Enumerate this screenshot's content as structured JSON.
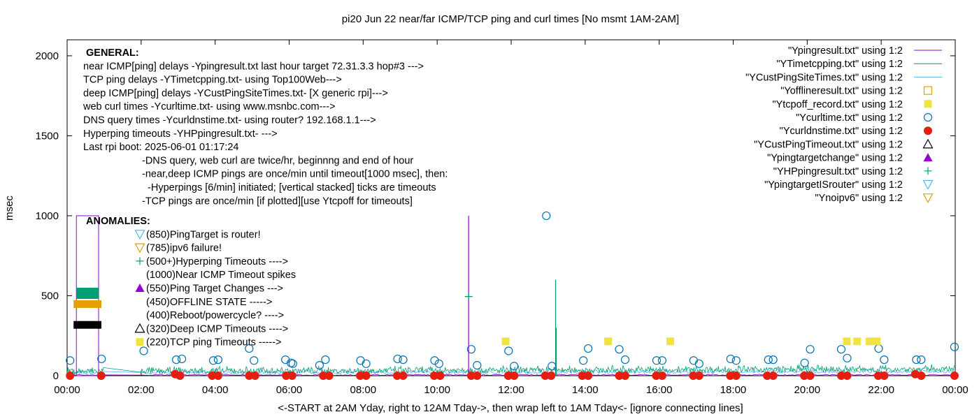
{
  "chart_data": {
    "type": "scatter",
    "title": "pi20 Jun 22  near/far ICMP/TCP ping and curl times [No msmt 1AM-2AM]",
    "xlabel": "<-START at 2AM Yday, right to 12AM Tday->, then wrap left to 1AM Tday<- [ignore connecting lines]",
    "ylabel": "msec",
    "xlim": [
      0,
      24
    ],
    "ylim": [
      0,
      2100
    ],
    "grid": false,
    "legend_position": "top-right",
    "x_ticks": [
      "00:00",
      "02:00",
      "04:00",
      "06:00",
      "08:00",
      "10:00",
      "12:00",
      "14:00",
      "16:00",
      "18:00",
      "20:00",
      "22:00",
      "00:00"
    ],
    "y_ticks": [
      0,
      500,
      1000,
      1500,
      2000
    ],
    "colors": {
      "ypingresult": "#9400d3",
      "ytimetcpping": "#009e73",
      "ycustping": "#56b4e9",
      "yoffline": "#e69f00",
      "ytcpoff": "#f0e442",
      "ycurltime": "#0072b2",
      "ycurldns": "#e51e10",
      "black": "#000000"
    },
    "legend": [
      {
        "label": "\"Ypingresult.txt\" using 1:2",
        "marker": "line",
        "color": "#9400d3"
      },
      {
        "label": "\"YTimetcpping.txt\" using 1:2",
        "marker": "line",
        "color": "#009e73"
      },
      {
        "label": "\"YCustPingSiteTimes.txt\" using 1:2",
        "marker": "line",
        "color": "#56b4e9"
      },
      {
        "label": "\"Yofflineresult.txt\" using 1:2",
        "marker": "square-open",
        "color": "#e69f00"
      },
      {
        "label": "\"Ytcpoff_record.txt\" using 1:2",
        "marker": "square-filled",
        "color": "#f0e442"
      },
      {
        "label": "\"Ycurltime.txt\" using 1:2",
        "marker": "circle-open",
        "color": "#0072b2"
      },
      {
        "label": "\"Ycurldnstime.txt\" using 1:2",
        "marker": "circle-filled",
        "color": "#e51e10"
      },
      {
        "label": "\"YCustPingTimeout.txt\" using 1:2",
        "marker": "triangle-open",
        "color": "#000000"
      },
      {
        "label": "\"Ypingtargetchange\" using 1:2",
        "marker": "triangle-filled",
        "color": "#9400d3"
      },
      {
        "label": "\"YHPpingresult.txt\" using 1:2",
        "marker": "plus",
        "color": "#009e73"
      },
      {
        "label": "\"YpingtargetISrouter\" using 1:2",
        "marker": "triangle-down-open",
        "color": "#56b4e9"
      },
      {
        "label": "\"Ynoipv6\" using 1:2",
        "marker": "triangle-down-open",
        "color": "#e69f00"
      }
    ],
    "annotations_general": [
      {
        "text": "GENERAL:",
        "bold": true
      },
      {
        "text": "near ICMP[ping] delays -Ypingresult.txt last hour target 72.31.3.3 hop#3 --->"
      },
      {
        "text": "TCP ping delays -YTimetcpping.txt- using Top100Web--->"
      },
      {
        "text": "deep ICMP[ping] delays -YCustPingSiteTimes.txt- [X generic rpi]--->"
      },
      {
        "text": "web curl times -Ycurltime.txt- using www.msnbc.com--->"
      },
      {
        "text": "DNS query times -Ycurldnstime.txt- using router? 192.168.1.1--->"
      },
      {
        "text": "Hyperping timeouts -YHPpingresult.txt- --->"
      },
      {
        "text": "Last rpi boot: 2025-06-01 01:17:24"
      },
      {
        "text": "-DNS query, web curl are twice/hr, beginnng and end of hour"
      },
      {
        "text": "-near,deep ICMP pings are once/min until timeout[1000 msec], then:"
      },
      {
        "text": "  -Hyperpings [6/min] initiated; [vertical stacked] ticks are timeouts"
      },
      {
        "text": "-TCP pings are once/min [if plotted][use Ytcpoff for timeouts]"
      }
    ],
    "annotations_anomalies": [
      {
        "text": "ANOMALIES:",
        "bold": true
      },
      {
        "text": "(850)PingTarget is router!",
        "marker": "triangle-down-open",
        "color": "#56b4e9"
      },
      {
        "text": "(785)ipv6 failure!",
        "marker": "triangle-down-open",
        "color": "#e69f00"
      },
      {
        "text": "(500+)Hyperping Timeouts ---->",
        "marker": "plus",
        "color": "#009e73"
      },
      {
        "text": "(1000)Near ICMP Timeout spikes"
      },
      {
        "text": "(550)Ping Target Changes --->",
        "marker": "triangle-filled",
        "color": "#9400d3"
      },
      {
        "text": "(450)OFFLINE STATE ----->"
      },
      {
        "text": "(400)Reboot/powercycle? ---->"
      },
      {
        "text": "(320)Deep ICMP Timeouts ---->",
        "marker": "triangle-open",
        "color": "#000000"
      },
      {
        "text": "(220)TCP ping Timeouts ----->",
        "marker": "square-filled",
        "color": "#f0e442"
      }
    ],
    "series": [
      {
        "name": "Ycurltime.txt",
        "marker": "circle-open",
        "color": "#0072b2",
        "x": [
          0.08,
          0.93,
          2.07,
          2.95,
          3.1,
          3.95,
          4.08,
          4.92,
          5.05,
          5.9,
          6.05,
          6.1,
          6.82,
          6.98,
          7.93,
          8.08,
          8.93,
          9.08,
          9.93,
          10.05,
          10.92,
          11.08,
          11.93,
          12.08,
          12.95,
          13.1,
          13.95,
          14.08,
          14.92,
          15.08,
          15.93,
          16.08,
          16.93,
          17.08,
          17.93,
          18.08,
          18.95,
          19.08,
          19.93,
          20.08,
          20.92,
          21.08,
          21.93,
          22.08,
          22.95,
          23.08,
          23.98
        ],
        "y": [
          95,
          105,
          155,
          100,
          105,
          95,
          100,
          170,
          95,
          100,
          80,
          75,
          65,
          100,
          95,
          75,
          105,
          100,
          95,
          75,
          165,
          65,
          155,
          60,
          1000,
          60,
          95,
          170,
          165,
          100,
          95,
          95,
          95,
          75,
          105,
          95,
          100,
          100,
          80,
          165,
          165,
          110,
          170,
          100,
          100,
          100,
          180
        ]
      },
      {
        "name": "Ycurldnstime.txt",
        "marker": "circle-filled",
        "color": "#e51e10",
        "x": [
          0.08,
          0.92,
          2.92,
          3.05,
          3.92,
          4.08,
          4.92,
          5.08,
          5.92,
          6.08,
          6.92,
          7.08,
          7.92,
          8.08,
          8.92,
          9.08,
          9.92,
          10.08,
          10.92,
          11.08,
          11.92,
          12.08,
          12.92,
          13.08,
          13.92,
          14.08,
          14.92,
          15.08,
          15.92,
          16.08,
          16.92,
          17.08,
          17.92,
          18.08,
          18.92,
          19.08,
          19.92,
          20.08,
          20.92,
          21.08,
          21.92,
          22.08,
          22.92,
          23.08,
          23.98
        ],
        "y": [
          0,
          0,
          10,
          0,
          0,
          0,
          0,
          0,
          0,
          0,
          0,
          0,
          0,
          0,
          0,
          0,
          0,
          0,
          0,
          0,
          0,
          0,
          0,
          0,
          0,
          0,
          0,
          0,
          0,
          0,
          0,
          0,
          0,
          0,
          0,
          0,
          0,
          0,
          0,
          0,
          0,
          0,
          10,
          0,
          0
        ]
      },
      {
        "name": "Ytcpoff_record.txt",
        "marker": "square-filled",
        "color": "#f0e442",
        "x": [
          11.85,
          14.62,
          16.3,
          21.07,
          21.35,
          21.68,
          21.88
        ],
        "y": [
          215,
          215,
          215,
          215,
          215,
          215,
          215
        ]
      },
      {
        "name": "YHPpingresult.txt",
        "marker": "plus",
        "color": "#009e73",
        "x": [
          10.85
        ],
        "y": [
          495
        ]
      }
    ],
    "spikes": [
      {
        "name": "Ypingresult.txt",
        "x": 10.85,
        "y": 1000,
        "color": "#9400d3"
      },
      {
        "name": "YTimetcpping.txt",
        "x": 13.2,
        "y": 600,
        "color": "#009e73"
      },
      {
        "name": "YTimetcpping.txt",
        "x": 13.22,
        "y": 300,
        "color": "#009e73"
      }
    ],
    "early_block": {
      "x_start": 0.25,
      "x_end": 0.85,
      "timeout_box_y": 1000,
      "tcp_band": [
        480,
        550
      ],
      "offline_y": 450,
      "deep_icmp_timeout_y": 320
    }
  }
}
